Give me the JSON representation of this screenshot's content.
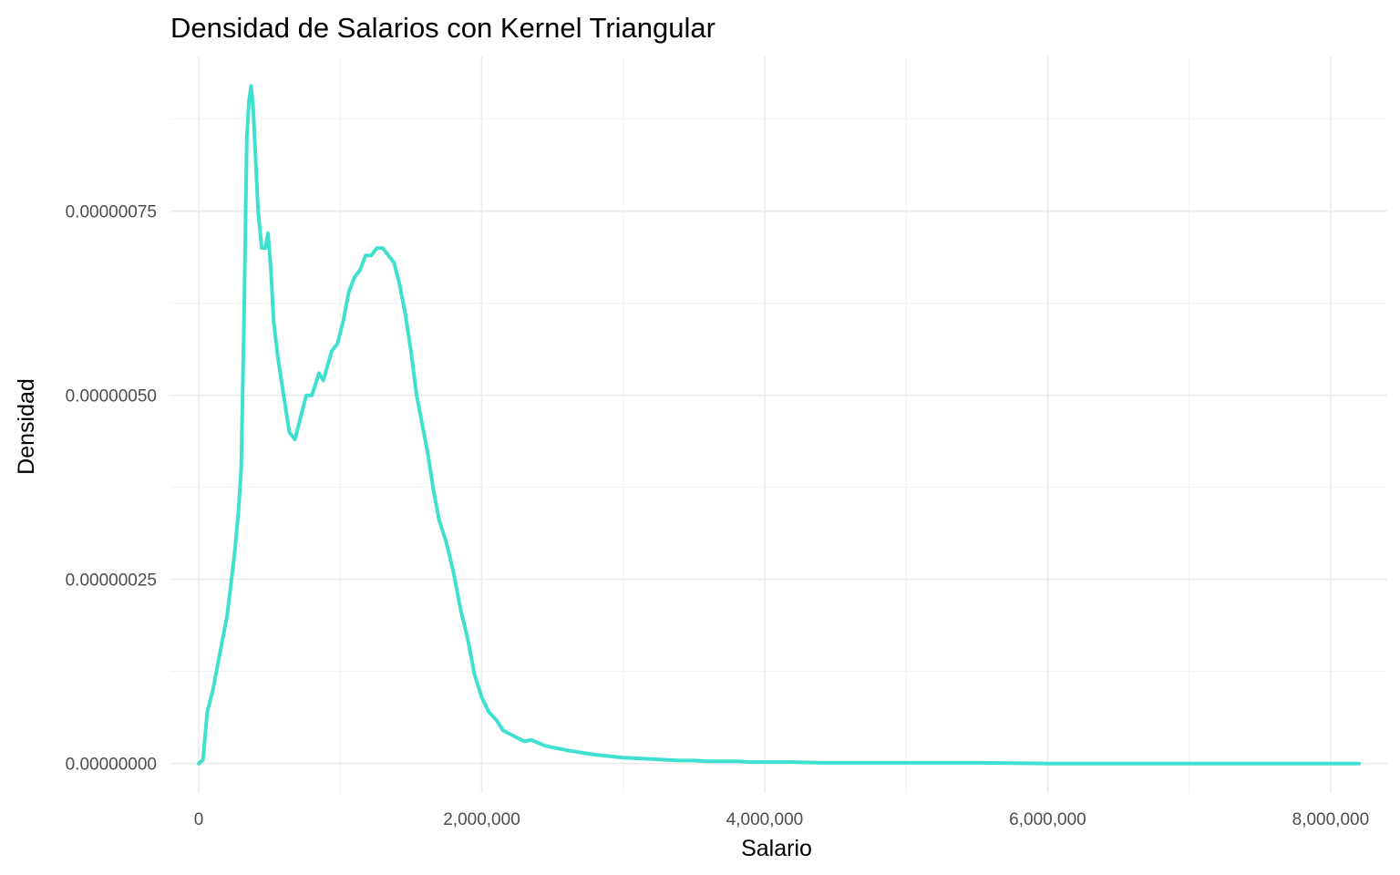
{
  "chart_data": {
    "type": "line",
    "title": "Densidad de Salarios con Kernel Triangular",
    "xlabel": "Salario",
    "ylabel": "Densidad",
    "xlim": [
      -200000,
      8400000
    ],
    "ylim": [
      -4e-08,
      9.6e-07
    ],
    "x_ticks": [
      0,
      2000000,
      4000000,
      6000000,
      8000000
    ],
    "x_tick_labels": [
      "0",
      "2,000,000",
      "4,000,000",
      "6,000,000",
      "8,000,000"
    ],
    "y_ticks": [
      0,
      2.5e-07,
      5e-07,
      7.5e-07
    ],
    "y_tick_labels": [
      "0.00000000",
      "0.00000025",
      "0.00000050",
      "0.00000075"
    ],
    "grid": true,
    "legend": "none",
    "colors": {
      "line": "#40e0d0",
      "grid": "#ebebeb",
      "background": "#ffffff"
    },
    "series": [
      {
        "x": [
          0,
          30000,
          60000,
          100000,
          150000,
          200000,
          250000,
          280000,
          300000,
          320000,
          340000,
          355000,
          370000,
          385000,
          400000,
          420000,
          445000,
          470000,
          490000,
          510000,
          530000,
          560000,
          600000,
          640000,
          680000,
          720000,
          760000,
          800000,
          850000,
          880000,
          910000,
          940000,
          980000,
          1020000,
          1060000,
          1100000,
          1140000,
          1180000,
          1220000,
          1260000,
          1300000,
          1340000,
          1380000,
          1420000,
          1460000,
          1500000,
          1540000,
          1580000,
          1620000,
          1660000,
          1700000,
          1750000,
          1800000,
          1850000,
          1900000,
          1950000,
          2000000,
          2050000,
          2100000,
          2150000,
          2200000,
          2250000,
          2300000,
          2350000,
          2400000,
          2450000,
          2500000,
          2550000,
          2600000,
          2700000,
          2800000,
          2900000,
          3000000,
          3100000,
          3200000,
          3300000,
          3400000,
          3500000,
          3600000,
          3700000,
          3800000,
          3900000,
          4000000,
          4200000,
          4400000,
          4600000,
          4800000,
          5000000,
          5500000,
          6000000,
          6500000,
          7000000,
          7500000,
          8000000,
          8200000
        ],
        "y": [
          0.0,
          5e-09,
          7e-08,
          1e-07,
          1.5e-07,
          2e-07,
          2.8e-07,
          3.4e-07,
          4e-07,
          6e-07,
          8.5e-07,
          9e-07,
          9.2e-07,
          8.9e-07,
          8.3e-07,
          7.5e-07,
          7e-07,
          7e-07,
          7.2e-07,
          6.7e-07,
          6e-07,
          5.5e-07,
          5e-07,
          4.5e-07,
          4.4e-07,
          4.7e-07,
          5e-07,
          5e-07,
          5.3e-07,
          5.2e-07,
          5.4e-07,
          5.6e-07,
          5.7e-07,
          6e-07,
          6.4e-07,
          6.6e-07,
          6.7e-07,
          6.9e-07,
          6.9e-07,
          7e-07,
          7e-07,
          6.9e-07,
          6.8e-07,
          6.5e-07,
          6.1e-07,
          5.6e-07,
          5e-07,
          4.6e-07,
          4.2e-07,
          3.7e-07,
          3.3e-07,
          3e-07,
          2.6e-07,
          2.1e-07,
          1.7e-07,
          1.2e-07,
          9e-08,
          7e-08,
          6e-08,
          4.5e-08,
          4e-08,
          3.5e-08,
          3e-08,
          3.2e-08,
          2.8e-08,
          2.4e-08,
          2.2e-08,
          2e-08,
          1.8e-08,
          1.5e-08,
          1.2e-08,
          1e-08,
          8e-09,
          7e-09,
          6e-09,
          5e-09,
          4e-09,
          4e-09,
          3e-09,
          3e-09,
          3e-09,
          2e-09,
          2e-09,
          2e-09,
          1e-09,
          1e-09,
          1e-09,
          1e-09,
          1e-09,
          0.0,
          0.0,
          0.0,
          0.0,
          0.0,
          0.0
        ]
      }
    ]
  }
}
